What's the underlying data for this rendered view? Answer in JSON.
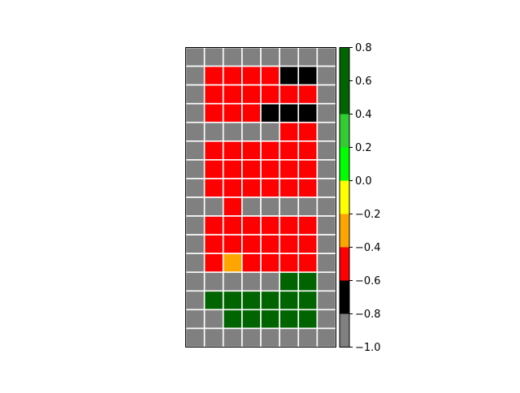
{
  "chart_data": {
    "type": "heatmap",
    "title": "",
    "xlabel": "",
    "ylabel": "",
    "rows": 16,
    "cols": 8,
    "cell_values": [
      [
        -0.9,
        -0.9,
        -0.9,
        -0.9,
        -0.9,
        -0.9,
        -0.9,
        -0.9
      ],
      [
        -0.9,
        -0.5,
        -0.5,
        -0.5,
        -0.5,
        -0.7,
        -0.7,
        -0.9
      ],
      [
        -0.9,
        -0.5,
        -0.5,
        -0.5,
        -0.5,
        -0.5,
        -0.5,
        -0.9
      ],
      [
        -0.9,
        -0.5,
        -0.5,
        -0.5,
        -0.7,
        -0.7,
        -0.7,
        -0.9
      ],
      [
        -0.9,
        -0.9,
        -0.9,
        -0.9,
        -0.9,
        -0.5,
        -0.5,
        -0.9
      ],
      [
        -0.9,
        -0.5,
        -0.5,
        -0.5,
        -0.5,
        -0.5,
        -0.5,
        -0.9
      ],
      [
        -0.9,
        -0.5,
        -0.5,
        -0.5,
        -0.5,
        -0.5,
        -0.5,
        -0.9
      ],
      [
        -0.9,
        -0.5,
        -0.5,
        -0.5,
        -0.5,
        -0.5,
        -0.5,
        -0.9
      ],
      [
        -0.9,
        -0.9,
        -0.5,
        -0.9,
        -0.9,
        -0.9,
        -0.9,
        -0.9
      ],
      [
        -0.9,
        -0.5,
        -0.5,
        -0.5,
        -0.5,
        -0.5,
        -0.5,
        -0.9
      ],
      [
        -0.9,
        -0.5,
        -0.5,
        -0.5,
        -0.5,
        -0.5,
        -0.5,
        -0.9
      ],
      [
        -0.9,
        -0.5,
        -0.3,
        -0.5,
        -0.5,
        -0.5,
        -0.5,
        -0.9
      ],
      [
        -0.9,
        -0.9,
        -0.9,
        -0.9,
        -0.9,
        0.7,
        0.7,
        -0.9
      ],
      [
        -0.9,
        0.7,
        0.7,
        0.7,
        0.7,
        0.7,
        0.7,
        -0.9
      ],
      [
        -0.9,
        -0.9,
        0.7,
        0.7,
        0.7,
        0.7,
        0.7,
        -0.9
      ],
      [
        -0.9,
        -0.9,
        -0.9,
        -0.9,
        -0.9,
        -0.9,
        -0.9,
        -0.9
      ]
    ],
    "colorbar": {
      "range": [
        -1.0,
        0.8
      ],
      "bins": [
        {
          "from": -1.0,
          "to": -0.8,
          "color": "#808080"
        },
        {
          "from": -0.8,
          "to": -0.6,
          "color": "#000000"
        },
        {
          "from": -0.6,
          "to": -0.4,
          "color": "#ff0000"
        },
        {
          "from": -0.4,
          "to": -0.2,
          "color": "#ffa500"
        },
        {
          "from": -0.2,
          "to": 0.0,
          "color": "#ffff00"
        },
        {
          "from": 0.0,
          "to": 0.2,
          "color": "#00ff00"
        },
        {
          "from": 0.2,
          "to": 0.4,
          "color": "#32cd32"
        },
        {
          "from": 0.4,
          "to": 0.8,
          "color": "#006400"
        }
      ],
      "ticks": [
        -1.0,
        -0.8,
        -0.6,
        -0.4,
        -0.2,
        0.0,
        0.2,
        0.4,
        0.6,
        0.8
      ],
      "tick_labels": [
        "−1.0",
        "−0.8",
        "−0.6",
        "−0.4",
        "−0.2",
        "0.0",
        "0.2",
        "0.4",
        "0.6",
        "0.8"
      ]
    },
    "grid": true,
    "grid_color": "#ffffff"
  }
}
